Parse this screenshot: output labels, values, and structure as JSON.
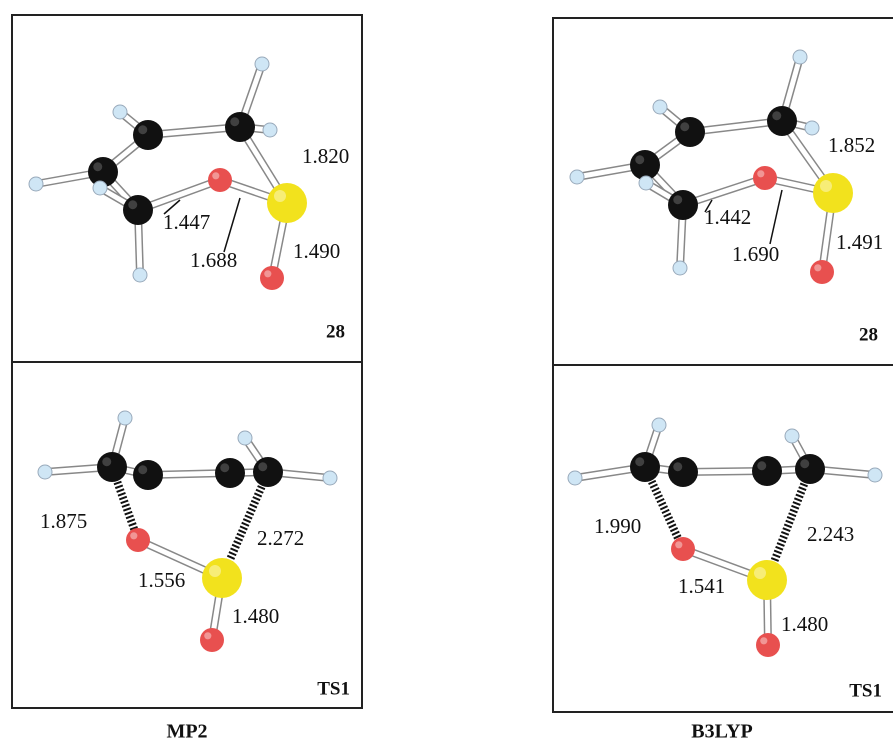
{
  "panels": [
    {
      "method": "MP2",
      "structures": [
        {
          "label": "28",
          "bond_lengths": [
            "1.820",
            "1.447",
            "1.688",
            "1.490"
          ]
        },
        {
          "label": "TS1",
          "bond_lengths": [
            "1.875",
            "2.272",
            "1.556",
            "1.480"
          ]
        }
      ]
    },
    {
      "method": "B3LYP",
      "structures": [
        {
          "label": "28",
          "bond_lengths": [
            "1.852",
            "1.442",
            "1.690",
            "1.491"
          ]
        },
        {
          "label": "TS1",
          "bond_lengths": [
            "1.990",
            "2.243",
            "1.541",
            "1.480"
          ]
        }
      ]
    }
  ]
}
